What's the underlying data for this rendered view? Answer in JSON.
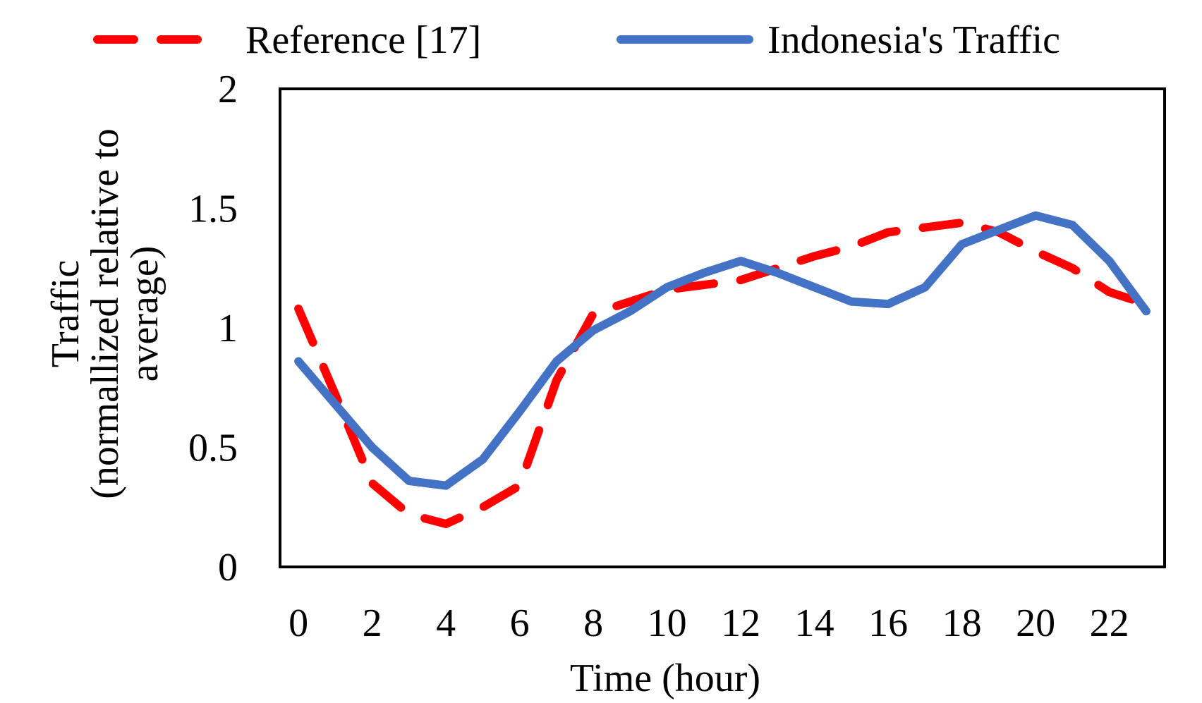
{
  "chart_data": {
    "type": "line",
    "xlabel": "Time (hour)",
    "ylabel": [
      "Traffic",
      "(normallized relative to",
      "average)"
    ],
    "ylim": [
      0,
      2
    ],
    "xlim": [
      -0.5,
      23.5
    ],
    "x_ticks": [
      0,
      2,
      4,
      6,
      8,
      10,
      12,
      14,
      16,
      18,
      20,
      22
    ],
    "x_tick_labels": [
      "0",
      "2",
      "4",
      "6",
      "8",
      "10",
      "12",
      "14",
      "16",
      "18",
      "20",
      "22"
    ],
    "y_ticks": [
      0,
      0.5,
      1,
      1.5,
      2
    ],
    "y_tick_labels": [
      "0",
      "0.5",
      "1",
      "1.5",
      "2"
    ],
    "grid": false,
    "legend_position": "top",
    "x": [
      0,
      1,
      2,
      3,
      4,
      5,
      6,
      7,
      8,
      9,
      10,
      11,
      12,
      13,
      14,
      15,
      16,
      17,
      18,
      19,
      20,
      21,
      22,
      23
    ],
    "series": [
      {
        "name": "Reference [17]",
        "color": "#FF0000",
        "dash": "dashed",
        "values": [
          1.08,
          0.72,
          0.35,
          0.22,
          0.18,
          0.25,
          0.34,
          0.78,
          1.06,
          1.11,
          1.16,
          1.18,
          1.2,
          1.25,
          1.3,
          1.34,
          1.4,
          1.42,
          1.44,
          1.4,
          1.32,
          1.25,
          1.15,
          1.1
        ]
      },
      {
        "name": "Indonesia's Traffic",
        "color": "#4472C4",
        "dash": "solid",
        "values": [
          0.86,
          0.68,
          0.5,
          0.36,
          0.34,
          0.45,
          0.65,
          0.86,
          0.99,
          1.07,
          1.17,
          1.23,
          1.28,
          1.23,
          1.17,
          1.11,
          1.1,
          1.17,
          1.35,
          1.41,
          1.47,
          1.43,
          1.28,
          1.07
        ]
      }
    ]
  }
}
